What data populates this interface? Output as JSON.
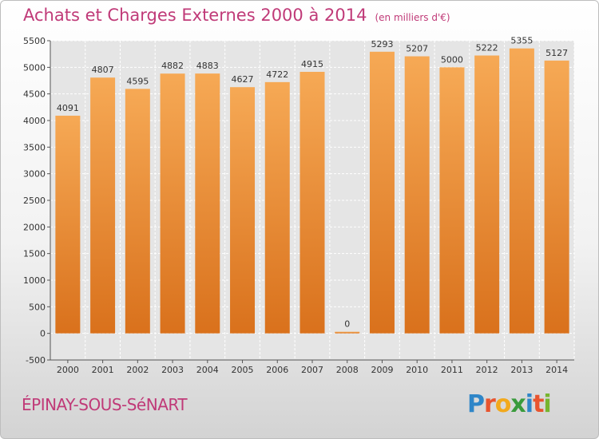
{
  "title": "Achats et Charges Externes 2000 à 2014",
  "unit": "(en milliers d'€)",
  "city": "ÉPINAY-SOUS-SéNART",
  "logo": {
    "letters": [
      "P",
      "r",
      "o",
      "x",
      "i",
      "t",
      "i"
    ],
    "colors": [
      "#2f86c8",
      "#e8542e",
      "#f2a91c",
      "#3a9b3c",
      "#2f86c8",
      "#e8542e",
      "#77b52f"
    ]
  },
  "colors": {
    "bar_top": "#f6a955",
    "bar_bottom": "#d9711c",
    "grid": "#ffffff",
    "plot_bg": "#e5e5e5",
    "text": "#333333"
  },
  "chart_data": {
    "type": "bar",
    "categories": [
      "2000",
      "2001",
      "2002",
      "2003",
      "2004",
      "2005",
      "2006",
      "2007",
      "2008",
      "2009",
      "2010",
      "2011",
      "2012",
      "2013",
      "2014"
    ],
    "values": [
      4091,
      4807,
      4595,
      4882,
      4883,
      4627,
      4722,
      4915,
      0,
      5293,
      5207,
      5000,
      5222,
      5355,
      5127
    ],
    "ylim": [
      -500,
      5500
    ],
    "yticks": [
      -500,
      0,
      500,
      1000,
      1500,
      2000,
      2500,
      3000,
      3500,
      4000,
      4500,
      5000,
      5500
    ],
    "grid": true
  }
}
